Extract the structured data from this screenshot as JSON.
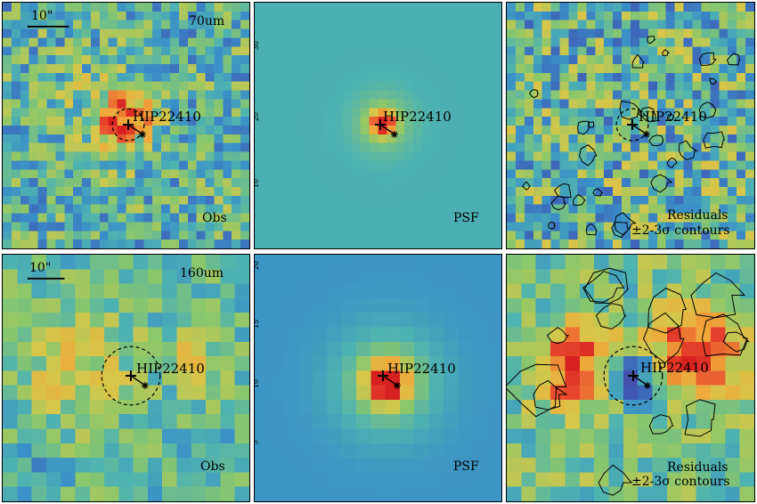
{
  "figure": {
    "rows": [
      {
        "band": "70um",
        "scalebar_label": "10\"",
        "panels": [
          {
            "kind": "obs",
            "label": "Obs",
            "star": "HIP22410",
            "theme": "noise"
          },
          {
            "kind": "psf",
            "label": "PSF",
            "star": "HIP22410",
            "theme": "psf"
          },
          {
            "kind": "residual",
            "label_line1": "Residuals",
            "label_line2": "±2-3σ contours",
            "star": "HIP22410",
            "theme": "noise"
          }
        ]
      },
      {
        "band": "160um",
        "scalebar_label": "10\"",
        "panels": [
          {
            "kind": "obs",
            "label": "Obs",
            "star": "HIP22410",
            "theme": "smooth"
          },
          {
            "kind": "psf",
            "label": "PSF",
            "star": "HIP22410",
            "theme": "psf"
          },
          {
            "kind": "residual",
            "label_line1": "Residuals",
            "label_line2": "±2-3σ contours",
            "star": "HIP22410",
            "theme": "hot"
          }
        ]
      }
    ],
    "psf_tick_labels_row1": [
      "30",
      "20",
      "10"
    ],
    "psf_tick_labels_row2": [
      "20",
      "15",
      "10",
      "5"
    ],
    "colormap": [
      "#5b2a86",
      "#3f5bb5",
      "#3a8fc8",
      "#4fb3b0",
      "#8cc76a",
      "#d6c74a",
      "#f0a83a",
      "#e8492e",
      "#d72020"
    ]
  }
}
